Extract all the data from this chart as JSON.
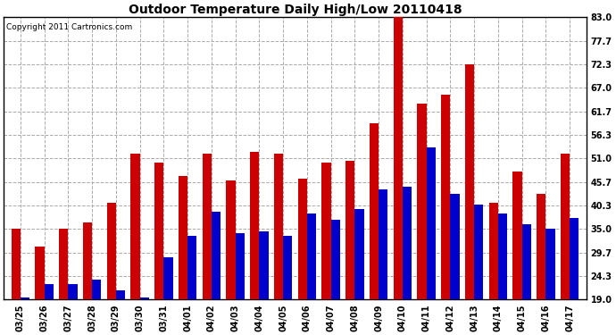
{
  "title": "Outdoor Temperature Daily High/Low 20110418",
  "copyright": "Copyright 2011 Cartronics.com",
  "dates": [
    "03/25",
    "03/26",
    "03/27",
    "03/28",
    "03/29",
    "03/30",
    "03/31",
    "04/01",
    "04/02",
    "04/03",
    "04/04",
    "04/05",
    "04/06",
    "04/07",
    "04/08",
    "04/09",
    "04/10",
    "04/11",
    "04/12",
    "04/13",
    "04/14",
    "04/15",
    "04/16",
    "04/17"
  ],
  "highs": [
    35.0,
    31.0,
    35.0,
    36.5,
    41.0,
    52.0,
    50.0,
    47.0,
    52.0,
    46.0,
    52.5,
    52.0,
    46.5,
    50.0,
    50.5,
    59.0,
    83.0,
    63.5,
    65.5,
    72.3,
    41.0,
    48.0,
    43.0,
    52.0
  ],
  "lows": [
    19.5,
    22.5,
    22.5,
    23.5,
    21.0,
    19.5,
    28.5,
    33.5,
    39.0,
    34.0,
    34.5,
    33.5,
    38.5,
    37.0,
    39.5,
    44.0,
    44.5,
    53.5,
    43.0,
    40.5,
    38.5,
    36.0,
    35.0,
    37.5
  ],
  "high_color": "#cc0000",
  "low_color": "#0000cc",
  "bg_color": "#ffffff",
  "plot_bg": "#ffffff",
  "grid_color": "#aaaaaa",
  "yticks": [
    19.0,
    24.3,
    29.7,
    35.0,
    40.3,
    45.7,
    51.0,
    56.3,
    61.7,
    67.0,
    72.3,
    77.7,
    83.0
  ],
  "ymin": 19.0,
  "ymax": 83.0,
  "bar_width": 0.38,
  "title_fontsize": 10,
  "tick_fontsize": 7,
  "copyright_fontsize": 6.5
}
